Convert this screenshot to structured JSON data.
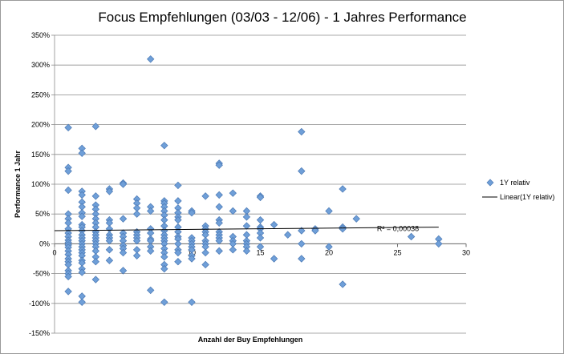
{
  "chart_data": {
    "type": "scatter",
    "title": "Focus Empfehlungen (03/03 - 12/06) - 1 Jahres Performance",
    "xlabel": "Anzahl der Buy Empfehlungen",
    "ylabel": "Performance 1 Jahr",
    "xlim": [
      0,
      30
    ],
    "ylim": [
      -150,
      350
    ],
    "x_ticks": [
      0,
      5,
      10,
      15,
      20,
      25,
      30
    ],
    "x_tick_labels": [
      "0",
      "5",
      "10",
      "15",
      "20",
      "25",
      "30"
    ],
    "y_ticks": [
      -150,
      -100,
      -50,
      0,
      50,
      100,
      150,
      200,
      250,
      300,
      350
    ],
    "y_tick_labels": [
      "-150%",
      "-100%",
      "-50%",
      "0%",
      "50%",
      "100%",
      "150%",
      "200%",
      "250%",
      "300%",
      "350%"
    ],
    "grid": "horizontal",
    "legend_position": "right",
    "marker_color": "#6f9fd8",
    "marker_edge_color": "#4a78b4",
    "trend_color": "#000000",
    "series": [
      {
        "name": "1Y relativ",
        "points": [
          [
            1,
            195
          ],
          [
            1,
            128
          ],
          [
            1,
            122
          ],
          [
            1,
            90
          ],
          [
            1,
            50
          ],
          [
            1,
            42
          ],
          [
            1,
            35
          ],
          [
            1,
            25
          ],
          [
            1,
            18
          ],
          [
            1,
            12
          ],
          [
            1,
            6
          ],
          [
            1,
            2
          ],
          [
            1,
            -2
          ],
          [
            1,
            -6
          ],
          [
            1,
            -12
          ],
          [
            1,
            -18
          ],
          [
            1,
            -25
          ],
          [
            1,
            -30
          ],
          [
            1,
            -35
          ],
          [
            1,
            -45
          ],
          [
            1,
            -50
          ],
          [
            1,
            -55
          ],
          [
            1,
            -80
          ],
          [
            2,
            160
          ],
          [
            2,
            152
          ],
          [
            2,
            88
          ],
          [
            2,
            82
          ],
          [
            2,
            70
          ],
          [
            2,
            62
          ],
          [
            2,
            52
          ],
          [
            2,
            46
          ],
          [
            2,
            32
          ],
          [
            2,
            28
          ],
          [
            2,
            22
          ],
          [
            2,
            15
          ],
          [
            2,
            10
          ],
          [
            2,
            5
          ],
          [
            2,
            0
          ],
          [
            2,
            -5
          ],
          [
            2,
            -10
          ],
          [
            2,
            -15
          ],
          [
            2,
            -20
          ],
          [
            2,
            -28
          ],
          [
            2,
            -32
          ],
          [
            2,
            -42
          ],
          [
            2,
            -48
          ],
          [
            2,
            -88
          ],
          [
            2,
            -98
          ],
          [
            3,
            197
          ],
          [
            3,
            80
          ],
          [
            3,
            65
          ],
          [
            3,
            58
          ],
          [
            3,
            50
          ],
          [
            3,
            42
          ],
          [
            3,
            35
          ],
          [
            3,
            28
          ],
          [
            3,
            20
          ],
          [
            3,
            15
          ],
          [
            3,
            10
          ],
          [
            3,
            5
          ],
          [
            3,
            0
          ],
          [
            3,
            -5
          ],
          [
            3,
            -12
          ],
          [
            3,
            -22
          ],
          [
            3,
            -30
          ],
          [
            3,
            -60
          ],
          [
            4,
            92
          ],
          [
            4,
            88
          ],
          [
            4,
            40
          ],
          [
            4,
            35
          ],
          [
            4,
            25
          ],
          [
            4,
            15
          ],
          [
            4,
            10
          ],
          [
            4,
            5
          ],
          [
            4,
            -10
          ],
          [
            4,
            -28
          ],
          [
            5,
            102
          ],
          [
            5,
            100
          ],
          [
            5,
            42
          ],
          [
            5,
            18
          ],
          [
            5,
            12
          ],
          [
            5,
            5
          ],
          [
            5,
            -3
          ],
          [
            5,
            -8
          ],
          [
            5,
            -15
          ],
          [
            5,
            -45
          ],
          [
            6,
            75
          ],
          [
            6,
            68
          ],
          [
            6,
            60
          ],
          [
            6,
            50
          ],
          [
            6,
            20
          ],
          [
            6,
            15
          ],
          [
            6,
            10
          ],
          [
            6,
            5
          ],
          [
            6,
            -10
          ],
          [
            6,
            -20
          ],
          [
            7,
            310
          ],
          [
            7,
            62
          ],
          [
            7,
            55
          ],
          [
            7,
            25
          ],
          [
            7,
            18
          ],
          [
            7,
            8
          ],
          [
            7,
            5
          ],
          [
            7,
            -5
          ],
          [
            7,
            -12
          ],
          [
            7,
            -78
          ],
          [
            8,
            165
          ],
          [
            8,
            72
          ],
          [
            8,
            68
          ],
          [
            8,
            62
          ],
          [
            8,
            55
          ],
          [
            8,
            48
          ],
          [
            8,
            40
          ],
          [
            8,
            30
          ],
          [
            8,
            22
          ],
          [
            8,
            15
          ],
          [
            8,
            10
          ],
          [
            8,
            5
          ],
          [
            8,
            0
          ],
          [
            8,
            -8
          ],
          [
            8,
            -15
          ],
          [
            8,
            -22
          ],
          [
            8,
            -35
          ],
          [
            8,
            -42
          ],
          [
            8,
            -98
          ],
          [
            9,
            98
          ],
          [
            9,
            72
          ],
          [
            9,
            60
          ],
          [
            9,
            52
          ],
          [
            9,
            45
          ],
          [
            9,
            40
          ],
          [
            9,
            28
          ],
          [
            9,
            20
          ],
          [
            9,
            12
          ],
          [
            9,
            8
          ],
          [
            9,
            0
          ],
          [
            9,
            -10
          ],
          [
            9,
            -15
          ],
          [
            9,
            -30
          ],
          [
            10,
            55
          ],
          [
            10,
            52
          ],
          [
            10,
            10
          ],
          [
            10,
            5
          ],
          [
            10,
            0
          ],
          [
            10,
            -5
          ],
          [
            10,
            -10
          ],
          [
            10,
            -20
          ],
          [
            10,
            -25
          ],
          [
            10,
            -98
          ],
          [
            11,
            80
          ],
          [
            11,
            30
          ],
          [
            11,
            25
          ],
          [
            11,
            20
          ],
          [
            11,
            15
          ],
          [
            11,
            5
          ],
          [
            11,
            0
          ],
          [
            11,
            -5
          ],
          [
            11,
            -15
          ],
          [
            11,
            -35
          ],
          [
            12,
            135
          ],
          [
            12,
            132
          ],
          [
            12,
            82
          ],
          [
            12,
            62
          ],
          [
            12,
            40
          ],
          [
            12,
            35
          ],
          [
            12,
            20
          ],
          [
            12,
            15
          ],
          [
            12,
            10
          ],
          [
            12,
            5
          ],
          [
            12,
            -12
          ],
          [
            13,
            85
          ],
          [
            13,
            55
          ],
          [
            13,
            12
          ],
          [
            13,
            5
          ],
          [
            13,
            0
          ],
          [
            13,
            -10
          ],
          [
            14,
            55
          ],
          [
            14,
            45
          ],
          [
            14,
            30
          ],
          [
            14,
            15
          ],
          [
            14,
            5
          ],
          [
            14,
            0
          ],
          [
            14,
            -5
          ],
          [
            14,
            -12
          ],
          [
            15,
            80
          ],
          [
            15,
            78
          ],
          [
            15,
            40
          ],
          [
            15,
            28
          ],
          [
            15,
            25
          ],
          [
            15,
            18
          ],
          [
            15,
            10
          ],
          [
            15,
            -5
          ],
          [
            16,
            32
          ],
          [
            16,
            -25
          ],
          [
            17,
            15
          ],
          [
            18,
            188
          ],
          [
            18,
            122
          ],
          [
            18,
            22
          ],
          [
            18,
            0
          ],
          [
            18,
            -25
          ],
          [
            19,
            25
          ],
          [
            19,
            22
          ],
          [
            20,
            55
          ],
          [
            20,
            -5
          ],
          [
            21,
            92
          ],
          [
            21,
            28
          ],
          [
            21,
            25
          ],
          [
            21,
            -68
          ],
          [
            22,
            42
          ],
          [
            26,
            12
          ],
          [
            28,
            8
          ],
          [
            28,
            0
          ]
        ]
      }
    ],
    "trendline": {
      "name": "Linear(1Y relativ)",
      "type": "linear",
      "x_range": [
        0,
        28
      ],
      "y_start": 22,
      "y_end": 28,
      "r_squared_label": "R² = 0,00038"
    }
  }
}
